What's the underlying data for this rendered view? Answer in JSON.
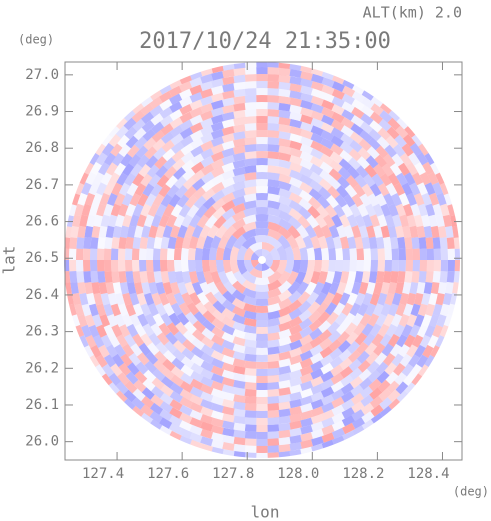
{
  "chart_data": {
    "type": "radar-ppi",
    "title": "2017/10/24 21:35:00",
    "annotation": "ALT(km) 2.0",
    "y_unit": "(deg)",
    "x_unit": "(deg)",
    "xlabel": "lon",
    "ylabel": "lat",
    "xlim": [
      127.24,
      128.46
    ],
    "ylim": [
      25.95,
      27.035
    ],
    "xticks": [
      127.4,
      127.6,
      127.8,
      {
        "value": 128,
        "label": "128.0"
      },
      128.2,
      128.4
    ],
    "yticks": [
      {
        "value": 26,
        "label": "26.0"
      },
      26.1,
      26.2,
      26.3,
      26.4,
      26.5,
      26.6,
      26.7,
      26.8,
      26.9,
      {
        "value": 27,
        "label": "27.0"
      }
    ]
  }
}
